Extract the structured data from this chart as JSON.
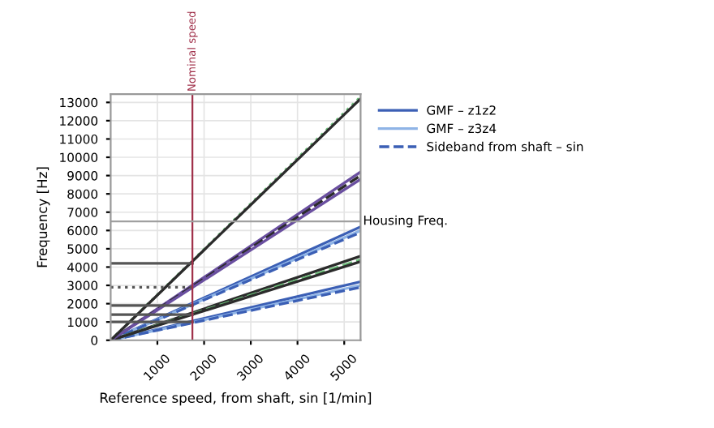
{
  "chart_data": {
    "type": "line",
    "xlabel": "Reference speed, from shaft, sin [1/min]",
    "ylabel": "Frequency [Hz]",
    "xlim": [
      0,
      5350
    ],
    "xticks": [
      1000,
      2000,
      3000,
      4000,
      5000
    ],
    "ylim": [
      0,
      13450
    ],
    "yticks": [
      0,
      1000,
      2000,
      3000,
      4000,
      5000,
      6000,
      7000,
      8000,
      9000,
      10000,
      11000,
      12000,
      13000
    ],
    "grid": true,
    "legend": "top right",
    "ref_lines": [
      {
        "axis": "x",
        "value": 1750,
        "label": "Nominal speed",
        "color": "#a0304a"
      },
      {
        "axis": "y",
        "value": 6500,
        "label": "Housing Freq.",
        "color": "#a0a0a0"
      }
    ],
    "series": [
      {
        "name": "GMF – z1z2",
        "color": "#3b5fb5",
        "line_style": "solid",
        "x": [
          0,
          5350
        ],
        "values": [
          0,
          3200
        ]
      },
      {
        "name": "GMF – z3z4",
        "color": "#8fb4e6",
        "line_style": "solid",
        "x": [
          0,
          5350
        ],
        "values": [
          0,
          3000
        ]
      },
      {
        "name": "Sideband from shaft – sin",
        "color": "#3b5fb5",
        "line_style": "dashed",
        "x": [
          0,
          5350
        ],
        "values": [
          0,
          2900
        ]
      },
      {
        "color": "#3b5fb5",
        "line_style": "solid",
        "x": [
          0,
          5350
        ],
        "values": [
          0,
          6200
        ]
      },
      {
        "color": "#8fb4e6",
        "line_style": "solid",
        "x": [
          0,
          5350
        ],
        "values": [
          0,
          6000
        ]
      },
      {
        "color": "#3b5fb5",
        "line_style": "dashed",
        "x": [
          0,
          5350
        ],
        "values": [
          0,
          5900
        ]
      },
      {
        "color": "#2b2b2b",
        "line_style": "solid",
        "x": [
          0,
          5350
        ],
        "values": [
          0,
          4600
        ]
      },
      {
        "color": "#6cbf7a",
        "line_style": "dashed",
        "x": [
          0,
          5350
        ],
        "values": [
          0,
          4400
        ]
      },
      {
        "color": "#2b2b2b",
        "line_style": "solid",
        "x": [
          0,
          5350
        ],
        "values": [
          0,
          4300
        ]
      },
      {
        "color": "#6a4fa0",
        "line_style": "solid",
        "x": [
          0,
          5350
        ],
        "values": [
          0,
          9200
        ]
      },
      {
        "color": "#2b2b2b",
        "line_style": "dashed",
        "x": [
          0,
          5350
        ],
        "values": [
          0,
          9000
        ]
      },
      {
        "color": "#6a4fa0",
        "line_style": "solid",
        "x": [
          0,
          5350
        ],
        "values": [
          0,
          8800
        ]
      },
      {
        "color": "#6cbf7a",
        "line_style": "dotted",
        "x": [
          0,
          5350
        ],
        "values": [
          0,
          13300
        ]
      },
      {
        "color": "#2b2b2b",
        "line_style": "solid",
        "x": [
          0,
          5350
        ],
        "values": [
          0,
          13200
        ]
      },
      {
        "color": "#555555",
        "line_style": "solid",
        "x": [
          0,
          1750
        ],
        "values": [
          4200,
          4200
        ]
      },
      {
        "color": "#555555",
        "line_style": "dotted",
        "x": [
          0,
          1750
        ],
        "values": [
          2900,
          2900
        ]
      },
      {
        "color": "#555555",
        "line_style": "solid",
        "x": [
          0,
          1750
        ],
        "values": [
          1900,
          1900
        ]
      },
      {
        "color": "#555555",
        "line_style": "solid",
        "x": [
          0,
          1750
        ],
        "values": [
          1400,
          1400
        ]
      },
      {
        "color": "#555555",
        "line_style": "solid",
        "x": [
          0,
          1750
        ],
        "values": [
          1000,
          1000
        ]
      }
    ]
  }
}
